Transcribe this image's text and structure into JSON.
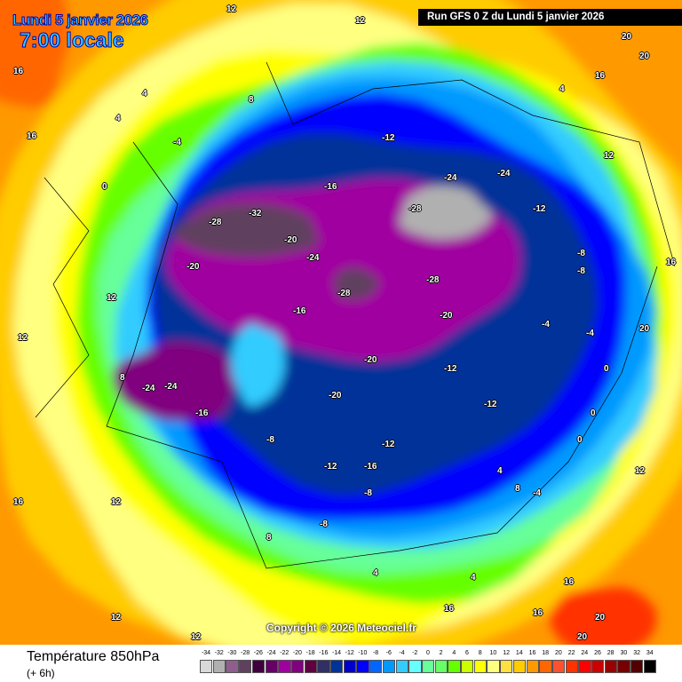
{
  "header": {
    "date": "Lundi 5 janvier 2026",
    "time": "7:00 locale",
    "run": "Run GFS 0 Z du Lundi 5 janvier 2026"
  },
  "copyright": "Copyright © 2026 Meteociel.fr",
  "footer": {
    "title": "Température 850hPa",
    "subtitle": "(+ 6h)"
  },
  "legend": {
    "labels": [
      "-34",
      "-32",
      "-30",
      "-28",
      "-26",
      "-24",
      "-22",
      "-20",
      "-18",
      "-16",
      "-14",
      "-12",
      "-10",
      "-8",
      "-6",
      "-4",
      "-2",
      "0",
      "2",
      "4",
      "6",
      "8",
      "10",
      "12",
      "14",
      "16",
      "18",
      "20",
      "22",
      "24",
      "26",
      "28",
      "30",
      "32",
      "34"
    ],
    "colors": [
      "#d9d9d9",
      "#b0b0b0",
      "#8f5e8f",
      "#60405f",
      "#40003f",
      "#660066",
      "#a000a0",
      "#800080",
      "#600040",
      "#303066",
      "#003399",
      "#0000cc",
      "#0000ff",
      "#0066ff",
      "#0099ff",
      "#33ccff",
      "#66ffff",
      "#66ff99",
      "#66ff66",
      "#66ff00",
      "#ccff00",
      "#ffff00",
      "#ffff80",
      "#ffe040",
      "#ffcc00",
      "#ff9900",
      "#ff6600",
      "#ff5030",
      "#ff3300",
      "#ff0000",
      "#cc0000",
      "#990000",
      "#770000",
      "#550000",
      "#000000"
    ]
  },
  "map_labels": [
    "12",
    "12",
    "12",
    "16",
    "16",
    "20",
    "20",
    "16",
    "16",
    "12",
    "12",
    "4",
    "4",
    "4",
    "8",
    "8",
    "0",
    "0",
    "-4",
    "-4",
    "-8",
    "-8",
    "-12",
    "-12",
    "-12",
    "-16",
    "-16",
    "-16",
    "-20",
    "-20",
    "-20",
    "-20",
    "-24",
    "-24",
    "-24",
    "-24",
    "-28",
    "-28",
    "-28",
    "-28",
    "-32",
    "-12",
    "-8",
    "-4",
    "0",
    "4",
    "8",
    "12",
    "16",
    "16",
    "20",
    "20",
    "16",
    "12",
    "8",
    "4",
    "-8",
    "-12",
    "-16",
    "-20",
    "-24",
    "-12",
    "-8",
    "-4",
    "0",
    "4",
    "12",
    "16",
    "20",
    "12"
  ]
}
